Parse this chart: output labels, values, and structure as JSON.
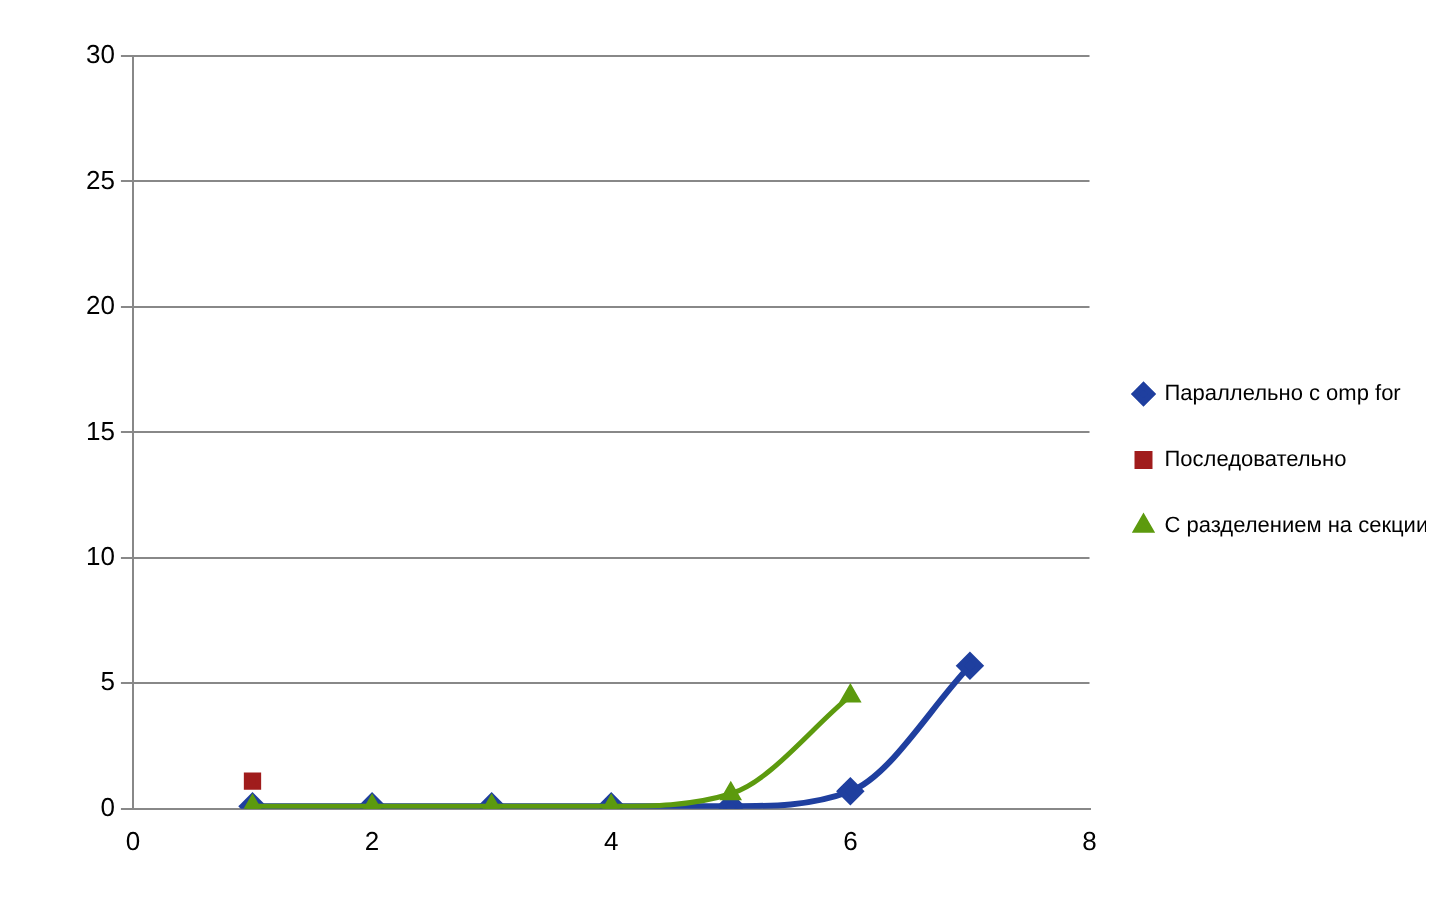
{
  "chart_data": {
    "type": "line",
    "x": [
      1,
      2,
      3,
      4,
      5,
      6,
      7
    ],
    "series": [
      {
        "name": "Параллельно с omp for",
        "color": "#1f3f9f",
        "marker": "diamond",
        "values": [
          0.1,
          0.1,
          0.1,
          0.1,
          0.1,
          0.7,
          5.7
        ]
      },
      {
        "name": "Последовательно",
        "color": "#a01c1c",
        "marker": "square",
        "x": [
          1
        ],
        "values": [
          1.1
        ]
      },
      {
        "name": "С разделением на секции",
        "color": "#5c9a0e",
        "marker": "triangle",
        "values": [
          0.1,
          0.1,
          0.1,
          0.1,
          0.6,
          4.5,
          null
        ]
      }
    ],
    "xlim": [
      0,
      8
    ],
    "xticks": [
      0,
      2,
      4,
      6,
      8
    ],
    "ylim": [
      0,
      30
    ],
    "yticks": [
      0,
      5,
      10,
      15,
      20,
      25,
      30
    ],
    "grid": "y",
    "legend": "right"
  }
}
